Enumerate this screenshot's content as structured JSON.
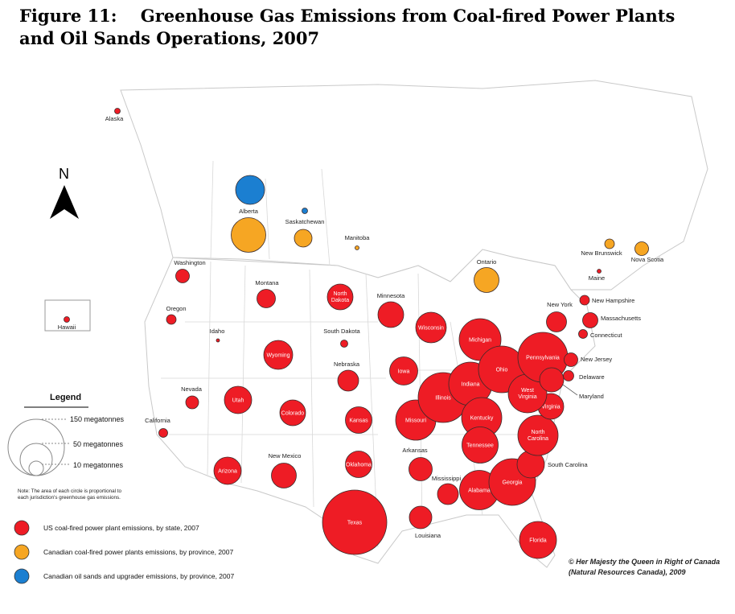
{
  "title": {
    "line1": "Figure 11:    Greenhouse Gas Emissions from Coal-fired Power Plants",
    "line2": "and Oil Sands Operations, 2007"
  },
  "north_label": "N",
  "colors": {
    "us_coal": "#ee1c25",
    "canada_coal": "#f6a623",
    "oil_sands": "#1b7fd1",
    "map_fill": "#ffffff",
    "map_border": "#c8c8c8"
  },
  "legend": {
    "title": "Legend",
    "size_150": "150 megatonnes",
    "size_50": "50 megatonnes",
    "size_10": "10 megatonnes",
    "note_line1": "Note: The area of each circle is proportional to",
    "note_line2": "each jurisdiction's greenhouse gas emissions.",
    "us_coal_label": "US coal-fired power plant emissions, by state, 2007",
    "canada_coal_label": "Canadian coal-fired power plants emissions, by province, 2007",
    "oil_sands_label": "Canadian oil sands and upgrader emissions, by province, 2007"
  },
  "credit": {
    "line1": "© Her Majesty the Queen in Right of Canada",
    "line2": "(Natural Resources Canada), 2009"
  },
  "jurisdictions": [
    {
      "name": "Alaska",
      "type": "us_coal"
    },
    {
      "name": "Hawaii",
      "type": "us_coal"
    },
    {
      "name": "Washington",
      "type": "us_coal"
    },
    {
      "name": "Oregon",
      "type": "us_coal"
    },
    {
      "name": "Idaho",
      "type": "us_coal"
    },
    {
      "name": "California",
      "type": "us_coal"
    },
    {
      "name": "Nevada",
      "type": "us_coal"
    },
    {
      "name": "Montana",
      "type": "us_coal"
    },
    {
      "name": "Wyoming",
      "type": "us_coal"
    },
    {
      "name": "Utah",
      "type": "us_coal"
    },
    {
      "name": "Colorado",
      "type": "us_coal"
    },
    {
      "name": "Arizona",
      "type": "us_coal"
    },
    {
      "name": "New Mexico",
      "type": "us_coal"
    },
    {
      "name": "North Dakota",
      "type": "us_coal"
    },
    {
      "name": "South Dakota",
      "type": "us_coal"
    },
    {
      "name": "Nebraska",
      "type": "us_coal"
    },
    {
      "name": "Kansas",
      "type": "us_coal"
    },
    {
      "name": "Oklahoma",
      "type": "us_coal"
    },
    {
      "name": "Texas",
      "type": "us_coal"
    },
    {
      "name": "Minnesota",
      "type": "us_coal"
    },
    {
      "name": "Iowa",
      "type": "us_coal"
    },
    {
      "name": "Missouri",
      "type": "us_coal"
    },
    {
      "name": "Arkansas",
      "type": "us_coal"
    },
    {
      "name": "Louisiana",
      "type": "us_coal"
    },
    {
      "name": "Wisconsin",
      "type": "us_coal"
    },
    {
      "name": "Illinois",
      "type": "us_coal"
    },
    {
      "name": "Michigan",
      "type": "us_coal"
    },
    {
      "name": "Indiana",
      "type": "us_coal"
    },
    {
      "name": "Ohio",
      "type": "us_coal"
    },
    {
      "name": "Kentucky",
      "type": "us_coal"
    },
    {
      "name": "Tennessee",
      "type": "us_coal"
    },
    {
      "name": "Mississippi",
      "type": "us_coal"
    },
    {
      "name": "Alabama",
      "type": "us_coal"
    },
    {
      "name": "Georgia",
      "type": "us_coal"
    },
    {
      "name": "Florida",
      "type": "us_coal"
    },
    {
      "name": "South Carolina",
      "type": "us_coal"
    },
    {
      "name": "North Carolina",
      "type": "us_coal"
    },
    {
      "name": "Virginia",
      "type": "us_coal"
    },
    {
      "name": "West Virginia",
      "type": "us_coal"
    },
    {
      "name": "Pennsylvania",
      "type": "us_coal"
    },
    {
      "name": "New York",
      "type": "us_coal"
    },
    {
      "name": "New Jersey",
      "type": "us_coal"
    },
    {
      "name": "Delaware",
      "type": "us_coal"
    },
    {
      "name": "Maryland",
      "type": "us_coal"
    },
    {
      "name": "Connecticut",
      "type": "us_coal"
    },
    {
      "name": "Massachusetts",
      "type": "us_coal"
    },
    {
      "name": "New Hampshire",
      "type": "us_coal"
    },
    {
      "name": "Maine",
      "type": "us_coal"
    },
    {
      "name": "Alberta",
      "type": "canada_coal"
    },
    {
      "name": "Alberta",
      "type": "oil_sands"
    },
    {
      "name": "Saskatchewan",
      "type": "canada_coal"
    },
    {
      "name": "Saskatchewan",
      "type": "oil_sands"
    },
    {
      "name": "Manitoba",
      "type": "canada_coal"
    },
    {
      "name": "Ontario",
      "type": "canada_coal"
    },
    {
      "name": "New Brunswick",
      "type": "canada_coal"
    },
    {
      "name": "Nova Scotia",
      "type": "canada_coal"
    }
  ]
}
